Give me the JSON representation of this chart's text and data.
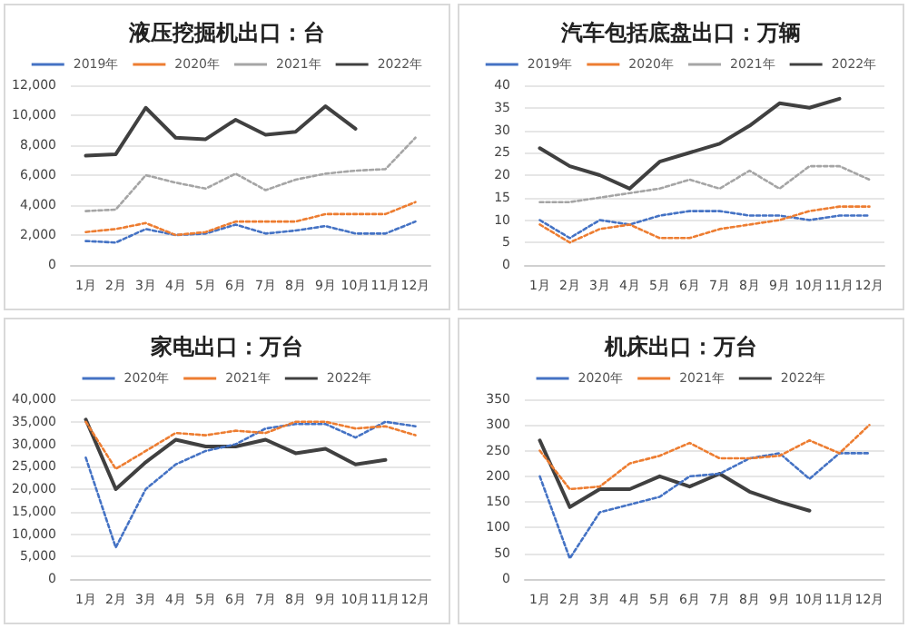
{
  "chart_data": [
    {
      "type": "line",
      "title": "液压挖掘机出口：台",
      "categories": [
        "1月",
        "2月",
        "3月",
        "4月",
        "5月",
        "6月",
        "7月",
        "8月",
        "9月",
        "10月",
        "11月",
        "12月"
      ],
      "ylim": [
        0,
        12000
      ],
      "yticks": [
        0,
        {
          "value": 2000,
          "label": "2,000"
        },
        {
          "value": 4000,
          "label": "4,000"
        },
        {
          "value": 6000,
          "label": "6,000"
        },
        {
          "value": 8000,
          "label": "8,000"
        },
        {
          "value": 10000,
          "label": "10,000"
        },
        {
          "value": 12000,
          "label": "12,000"
        }
      ],
      "grid": "y",
      "legend": "top",
      "marker": "none",
      "series": [
        {
          "name": "2019年",
          "color": "#4472c4",
          "line_style": "dotted",
          "values": [
            1600,
            1500,
            2400,
            2000,
            2100,
            2700,
            2100,
            2300,
            2600,
            2100,
            2100,
            2900
          ]
        },
        {
          "name": "2020年",
          "color": "#ed7d31",
          "line_style": "dotted",
          "values": [
            2200,
            2400,
            2800,
            2000,
            2200,
            2900,
            2900,
            2900,
            3400,
            3400,
            3400,
            4200
          ]
        },
        {
          "name": "2021年",
          "color": "#a5a5a5",
          "line_style": "dotted",
          "values": [
            3600,
            3700,
            6000,
            5500,
            5100,
            6100,
            5000,
            5700,
            6100,
            6300,
            6400,
            8500
          ]
        },
        {
          "name": "2022年",
          "color": "#404040",
          "line_style": "solid",
          "values": [
            7300,
            7400,
            10500,
            8500,
            8400,
            9700,
            8700,
            8900,
            10600,
            9100,
            null,
            null
          ]
        }
      ]
    },
    {
      "type": "line",
      "title": "汽车包括底盘出口：万辆",
      "categories": [
        "1月",
        "2月",
        "3月",
        "4月",
        "5月",
        "6月",
        "7月",
        "8月",
        "9月",
        "10月",
        "11月",
        "12月"
      ],
      "ylim": [
        0,
        40
      ],
      "yticks": [
        0,
        5,
        10,
        15,
        20,
        25,
        30,
        35,
        40
      ],
      "grid": "y",
      "legend": "top",
      "marker": "none",
      "series": [
        {
          "name": "2019年",
          "color": "#4472c4",
          "line_style": "dotted",
          "values": [
            10,
            6,
            10,
            9,
            11,
            12,
            12,
            11,
            11,
            10,
            11,
            11
          ]
        },
        {
          "name": "2020年",
          "color": "#ed7d31",
          "line_style": "dotted",
          "values": [
            9,
            5,
            8,
            9,
            6,
            6,
            8,
            9,
            10,
            12,
            13,
            13
          ]
        },
        {
          "name": "2021年",
          "color": "#a5a5a5",
          "line_style": "dotted",
          "values": [
            14,
            14,
            15,
            16,
            17,
            19,
            17,
            21,
            17,
            22,
            22,
            19
          ]
        },
        {
          "name": "2022年",
          "color": "#404040",
          "line_style": "solid",
          "values": [
            26,
            22,
            20,
            17,
            23,
            25,
            27,
            31,
            36,
            35,
            37,
            null
          ]
        }
      ]
    },
    {
      "type": "line",
      "title": "家电出口：万台",
      "categories": [
        "1月",
        "2月",
        "3月",
        "4月",
        "5月",
        "6月",
        "7月",
        "8月",
        "9月",
        "10月",
        "11月",
        "12月"
      ],
      "ylim": [
        0,
        40000
      ],
      "yticks": [
        0,
        {
          "value": 5000,
          "label": "5,000"
        },
        {
          "value": 10000,
          "label": "10,000"
        },
        {
          "value": 15000,
          "label": "15,000"
        },
        {
          "value": 20000,
          "label": "20,000"
        },
        {
          "value": 25000,
          "label": "25,000"
        },
        {
          "value": 30000,
          "label": "30,000"
        },
        {
          "value": 35000,
          "label": "35,000"
        },
        {
          "value": 40000,
          "label": "40,000"
        }
      ],
      "grid": "y",
      "legend": "top",
      "marker": "none",
      "series": [
        {
          "name": "2020年",
          "color": "#4472c4",
          "line_style": "dotted",
          "values": [
            27000,
            7000,
            20000,
            25500,
            28500,
            30000,
            33500,
            34500,
            34500,
            31500,
            35000,
            34000
          ]
        },
        {
          "name": "2021年",
          "color": "#ed7d31",
          "line_style": "dotted",
          "values": [
            35000,
            24500,
            28500,
            32500,
            32000,
            33000,
            32500,
            35000,
            35000,
            33500,
            34000,
            32000
          ]
        },
        {
          "name": "2022年",
          "color": "#404040",
          "line_style": "solid",
          "values": [
            35500,
            20000,
            26000,
            31000,
            29500,
            29500,
            31000,
            28000,
            29000,
            25500,
            26500,
            null
          ]
        }
      ]
    },
    {
      "type": "line",
      "title": "机床出口：万台",
      "categories": [
        "1月",
        "2月",
        "3月",
        "4月",
        "5月",
        "6月",
        "7月",
        "8月",
        "9月",
        "10月",
        "11月",
        "12月"
      ],
      "ylim": [
        0,
        350
      ],
      "yticks": [
        0,
        50,
        100,
        150,
        200,
        250,
        300,
        350
      ],
      "grid": "y",
      "legend": "top",
      "marker": "none",
      "series": [
        {
          "name": "2020年",
          "color": "#4472c4",
          "line_style": "dotted",
          "values": [
            200,
            40,
            130,
            145,
            160,
            200,
            205,
            235,
            245,
            195,
            245,
            245
          ]
        },
        {
          "name": "2021年",
          "color": "#ed7d31",
          "line_style": "dotted",
          "values": [
            250,
            175,
            180,
            225,
            240,
            265,
            235,
            235,
            240,
            270,
            245,
            300
          ]
        },
        {
          "name": "2022年",
          "color": "#404040",
          "line_style": "solid",
          "values": [
            270,
            140,
            175,
            175,
            200,
            180,
            205,
            170,
            150,
            133,
            null,
            null
          ]
        }
      ]
    }
  ]
}
